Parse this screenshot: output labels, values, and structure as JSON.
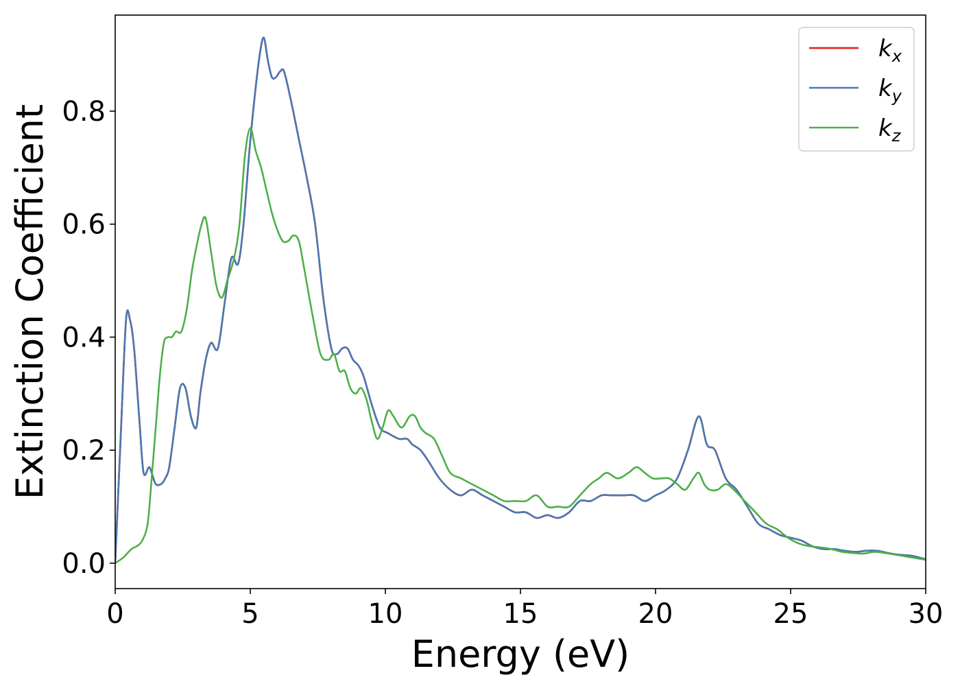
{
  "chart_data": {
    "type": "line",
    "xlabel": "Energy (eV)",
    "ylabel": "Extinction Coefficient",
    "xlim": [
      0,
      30
    ],
    "ylim": [
      -0.045,
      0.97
    ],
    "xticks": [
      0,
      5,
      10,
      15,
      20,
      25,
      30
    ],
    "yticks": [
      0.0,
      0.2,
      0.4,
      0.6,
      0.8
    ],
    "xtick_labels": [
      "0",
      "5",
      "10",
      "15",
      "20",
      "25",
      "30"
    ],
    "ytick_labels": [
      "0.0",
      "0.2",
      "0.4",
      "0.6",
      "0.8"
    ],
    "grid": false,
    "legend_position": "top-right",
    "series": [
      {
        "name": "k",
        "sub": "x",
        "color": "#e41a1c",
        "x": [
          0.0,
          0.2,
          0.4,
          0.55,
          0.7,
          0.9,
          1.05,
          1.25,
          1.35,
          1.5,
          1.7,
          1.85,
          2.0,
          2.2,
          2.4,
          2.6,
          2.8,
          3.0,
          3.15,
          3.35,
          3.55,
          3.8,
          4.05,
          4.3,
          4.55,
          4.75,
          4.95,
          5.15,
          5.35,
          5.5,
          5.65,
          5.8,
          5.95,
          6.1,
          6.25,
          6.5,
          6.8,
          7.1,
          7.4,
          7.7,
          8.0,
          8.2,
          8.4,
          8.6,
          8.8,
          9.0,
          9.2,
          9.5,
          9.8,
          10.1,
          10.5,
          10.8,
          11.0,
          11.3,
          11.6,
          12.0,
          12.4,
          12.8,
          13.2,
          13.6,
          14.0,
          14.4,
          14.8,
          15.2,
          15.6,
          16.0,
          16.4,
          16.8,
          17.2,
          17.6,
          18.0,
          18.4,
          18.8,
          19.2,
          19.6,
          20.0,
          20.4,
          20.8,
          21.2,
          21.6,
          21.9,
          22.2,
          22.6,
          23.0,
          23.4,
          23.8,
          24.2,
          24.6,
          25.0,
          25.4,
          25.8,
          26.2,
          26.6,
          27.0,
          27.4,
          27.8,
          28.2,
          28.6,
          29.0,
          29.5,
          30.0
        ],
        "y": [
          0.0,
          0.22,
          0.43,
          0.43,
          0.38,
          0.25,
          0.16,
          0.17,
          0.16,
          0.14,
          0.14,
          0.15,
          0.17,
          0.24,
          0.31,
          0.31,
          0.26,
          0.24,
          0.3,
          0.36,
          0.39,
          0.38,
          0.46,
          0.54,
          0.53,
          0.6,
          0.72,
          0.82,
          0.9,
          0.93,
          0.89,
          0.86,
          0.86,
          0.87,
          0.87,
          0.82,
          0.75,
          0.68,
          0.6,
          0.47,
          0.38,
          0.37,
          0.38,
          0.38,
          0.36,
          0.35,
          0.33,
          0.28,
          0.24,
          0.23,
          0.22,
          0.22,
          0.21,
          0.2,
          0.18,
          0.15,
          0.13,
          0.12,
          0.13,
          0.12,
          0.11,
          0.1,
          0.09,
          0.09,
          0.08,
          0.085,
          0.08,
          0.09,
          0.11,
          0.11,
          0.12,
          0.12,
          0.12,
          0.12,
          0.11,
          0.12,
          0.13,
          0.15,
          0.2,
          0.26,
          0.21,
          0.2,
          0.15,
          0.13,
          0.1,
          0.07,
          0.06,
          0.05,
          0.045,
          0.04,
          0.03,
          0.025,
          0.025,
          0.022,
          0.02,
          0.022,
          0.022,
          0.018,
          0.015,
          0.013,
          0.007
        ]
      },
      {
        "name": "k",
        "sub": "y",
        "color": "#4a78b0",
        "x": [
          0.0,
          0.2,
          0.4,
          0.55,
          0.7,
          0.9,
          1.05,
          1.25,
          1.35,
          1.5,
          1.7,
          1.85,
          2.0,
          2.2,
          2.4,
          2.6,
          2.8,
          3.0,
          3.15,
          3.35,
          3.55,
          3.8,
          4.05,
          4.3,
          4.55,
          4.75,
          4.95,
          5.15,
          5.35,
          5.5,
          5.65,
          5.8,
          5.95,
          6.1,
          6.25,
          6.5,
          6.8,
          7.1,
          7.4,
          7.7,
          8.0,
          8.2,
          8.4,
          8.6,
          8.8,
          9.0,
          9.2,
          9.5,
          9.8,
          10.1,
          10.5,
          10.8,
          11.0,
          11.3,
          11.6,
          12.0,
          12.4,
          12.8,
          13.2,
          13.6,
          14.0,
          14.4,
          14.8,
          15.2,
          15.6,
          16.0,
          16.4,
          16.8,
          17.2,
          17.6,
          18.0,
          18.4,
          18.8,
          19.2,
          19.6,
          20.0,
          20.4,
          20.8,
          21.2,
          21.6,
          21.9,
          22.2,
          22.6,
          23.0,
          23.4,
          23.8,
          24.2,
          24.6,
          25.0,
          25.4,
          25.8,
          26.2,
          26.6,
          27.0,
          27.4,
          27.8,
          28.2,
          28.6,
          29.0,
          29.5,
          30.0
        ],
        "y": [
          0.0,
          0.22,
          0.43,
          0.43,
          0.38,
          0.25,
          0.16,
          0.17,
          0.16,
          0.14,
          0.14,
          0.15,
          0.17,
          0.24,
          0.31,
          0.31,
          0.26,
          0.24,
          0.3,
          0.36,
          0.39,
          0.38,
          0.46,
          0.54,
          0.53,
          0.6,
          0.72,
          0.82,
          0.9,
          0.93,
          0.89,
          0.86,
          0.86,
          0.87,
          0.87,
          0.82,
          0.75,
          0.68,
          0.6,
          0.47,
          0.38,
          0.37,
          0.38,
          0.38,
          0.36,
          0.35,
          0.33,
          0.28,
          0.24,
          0.23,
          0.22,
          0.22,
          0.21,
          0.2,
          0.18,
          0.15,
          0.13,
          0.12,
          0.13,
          0.12,
          0.11,
          0.1,
          0.09,
          0.09,
          0.08,
          0.085,
          0.08,
          0.09,
          0.11,
          0.11,
          0.12,
          0.12,
          0.12,
          0.12,
          0.11,
          0.12,
          0.13,
          0.15,
          0.2,
          0.26,
          0.21,
          0.2,
          0.15,
          0.13,
          0.1,
          0.07,
          0.06,
          0.05,
          0.045,
          0.04,
          0.03,
          0.025,
          0.025,
          0.022,
          0.02,
          0.022,
          0.022,
          0.018,
          0.015,
          0.013,
          0.007
        ]
      },
      {
        "name": "k",
        "sub": "z",
        "color": "#4daf4a",
        "x": [
          0.0,
          0.3,
          0.6,
          0.8,
          1.0,
          1.2,
          1.35,
          1.5,
          1.65,
          1.8,
          1.95,
          2.1,
          2.25,
          2.45,
          2.65,
          2.85,
          3.05,
          3.2,
          3.35,
          3.55,
          3.75,
          3.95,
          4.15,
          4.4,
          4.6,
          4.8,
          5.0,
          5.2,
          5.4,
          5.6,
          5.8,
          6.0,
          6.2,
          6.4,
          6.6,
          6.8,
          7.0,
          7.3,
          7.6,
          7.9,
          8.1,
          8.3,
          8.5,
          8.7,
          8.9,
          9.1,
          9.3,
          9.5,
          9.7,
          9.9,
          10.1,
          10.3,
          10.6,
          10.9,
          11.1,
          11.3,
          11.5,
          11.8,
          12.1,
          12.4,
          12.8,
          13.2,
          13.6,
          14.0,
          14.4,
          14.8,
          15.2,
          15.6,
          16.0,
          16.4,
          16.8,
          17.2,
          17.6,
          17.9,
          18.2,
          18.6,
          19.0,
          19.3,
          19.6,
          19.9,
          20.2,
          20.5,
          20.8,
          21.1,
          21.4,
          21.6,
          21.8,
          22.0,
          22.3,
          22.6,
          22.9,
          23.3,
          23.7,
          24.1,
          24.5,
          24.9,
          25.3,
          25.7,
          26.1,
          26.5,
          26.9,
          27.3,
          27.7,
          28.1,
          28.5,
          29.0,
          29.5,
          30.0
        ],
        "y": [
          0.0,
          0.01,
          0.025,
          0.03,
          0.04,
          0.07,
          0.15,
          0.24,
          0.33,
          0.39,
          0.4,
          0.4,
          0.41,
          0.41,
          0.45,
          0.52,
          0.57,
          0.6,
          0.61,
          0.55,
          0.49,
          0.47,
          0.5,
          0.54,
          0.6,
          0.72,
          0.77,
          0.73,
          0.7,
          0.66,
          0.62,
          0.59,
          0.57,
          0.57,
          0.58,
          0.57,
          0.52,
          0.44,
          0.37,
          0.36,
          0.37,
          0.34,
          0.34,
          0.31,
          0.3,
          0.31,
          0.29,
          0.25,
          0.22,
          0.24,
          0.27,
          0.26,
          0.24,
          0.26,
          0.26,
          0.24,
          0.23,
          0.22,
          0.19,
          0.16,
          0.15,
          0.14,
          0.13,
          0.12,
          0.11,
          0.11,
          0.11,
          0.12,
          0.1,
          0.1,
          0.1,
          0.12,
          0.14,
          0.15,
          0.16,
          0.15,
          0.16,
          0.17,
          0.16,
          0.15,
          0.15,
          0.15,
          0.14,
          0.13,
          0.15,
          0.16,
          0.14,
          0.13,
          0.13,
          0.14,
          0.13,
          0.11,
          0.09,
          0.07,
          0.06,
          0.045,
          0.035,
          0.03,
          0.028,
          0.025,
          0.02,
          0.018,
          0.017,
          0.02,
          0.018,
          0.014,
          0.01,
          0.006
        ]
      }
    ]
  }
}
